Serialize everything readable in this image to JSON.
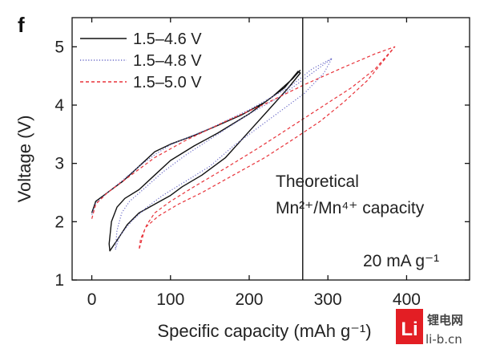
{
  "panel_label": "f",
  "chart_data": {
    "type": "line",
    "xlabel": "Specific capacity (mAh g⁻¹)",
    "ylabel": "Voltage (V)",
    "xlim": [
      -25,
      480
    ],
    "ylim": [
      1,
      5.5
    ],
    "xticks": [
      0,
      100,
      200,
      300,
      400
    ],
    "yticks": [
      1,
      2,
      3,
      4,
      5
    ],
    "grid": false,
    "legend_position": "top-left",
    "series": [
      {
        "name": "1.5–4.6 V",
        "color": "#111111",
        "style": "solid",
        "points": [
          [
            0,
            2.15
          ],
          [
            5,
            2.35
          ],
          [
            20,
            2.5
          ],
          [
            40,
            2.7
          ],
          [
            60,
            2.95
          ],
          [
            80,
            3.2
          ],
          [
            100,
            3.33
          ],
          [
            130,
            3.48
          ],
          [
            160,
            3.65
          ],
          [
            190,
            3.83
          ],
          [
            220,
            4.05
          ],
          [
            245,
            4.3
          ],
          [
            262,
            4.58
          ],
          [
            265,
            4.55
          ],
          [
            250,
            4.3
          ],
          [
            230,
            4.0
          ],
          [
            200,
            3.55
          ],
          [
            170,
            3.1
          ],
          [
            140,
            2.8
          ],
          [
            115,
            2.6
          ],
          [
            100,
            2.45
          ],
          [
            80,
            2.3
          ],
          [
            60,
            2.15
          ],
          [
            45,
            1.95
          ],
          [
            33,
            1.7
          ],
          [
            23,
            1.5
          ],
          [
            22,
            1.62
          ],
          [
            25,
            2.0
          ],
          [
            32,
            2.25
          ],
          [
            42,
            2.4
          ],
          [
            60,
            2.55
          ],
          [
            80,
            2.8
          ],
          [
            100,
            3.05
          ],
          [
            130,
            3.3
          ],
          [
            160,
            3.52
          ],
          [
            200,
            3.85
          ],
          [
            230,
            4.15
          ],
          [
            255,
            4.45
          ],
          [
            265,
            4.6
          ]
        ]
      },
      {
        "name": "1.5–4.8 V",
        "color": "#6b6bc8",
        "style": "dotted",
        "points": [
          [
            0,
            2.12
          ],
          [
            5,
            2.32
          ],
          [
            20,
            2.5
          ],
          [
            40,
            2.72
          ],
          [
            60,
            2.95
          ],
          [
            80,
            3.15
          ],
          [
            100,
            3.32
          ],
          [
            150,
            3.6
          ],
          [
            200,
            3.92
          ],
          [
            250,
            4.3
          ],
          [
            280,
            4.62
          ],
          [
            305,
            4.8
          ],
          [
            295,
            4.55
          ],
          [
            270,
            4.2
          ],
          [
            240,
            3.9
          ],
          [
            210,
            3.6
          ],
          [
            180,
            3.3
          ],
          [
            150,
            2.95
          ],
          [
            120,
            2.7
          ],
          [
            90,
            2.45
          ],
          [
            70,
            2.25
          ],
          [
            50,
            2.0
          ],
          [
            35,
            1.75
          ],
          [
            30,
            1.52
          ],
          [
            32,
            1.85
          ],
          [
            38,
            2.15
          ],
          [
            48,
            2.35
          ],
          [
            65,
            2.55
          ],
          [
            90,
            2.85
          ],
          [
            120,
            3.15
          ],
          [
            160,
            3.5
          ],
          [
            200,
            3.85
          ],
          [
            240,
            4.15
          ],
          [
            270,
            4.45
          ],
          [
            290,
            4.65
          ],
          [
            305,
            4.8
          ]
        ]
      },
      {
        "name": "1.5–5.0 V",
        "color": "#e8333a",
        "style": "dashed",
        "points": [
          [
            0,
            2.05
          ],
          [
            5,
            2.3
          ],
          [
            20,
            2.5
          ],
          [
            50,
            2.8
          ],
          [
            80,
            3.1
          ],
          [
            120,
            3.4
          ],
          [
            170,
            3.72
          ],
          [
            220,
            4.02
          ],
          [
            270,
            4.35
          ],
          [
            320,
            4.65
          ],
          [
            360,
            4.88
          ],
          [
            385,
            5.0
          ],
          [
            370,
            4.75
          ],
          [
            350,
            4.42
          ],
          [
            320,
            4.05
          ],
          [
            290,
            3.72
          ],
          [
            260,
            3.45
          ],
          [
            220,
            3.1
          ],
          [
            180,
            2.8
          ],
          [
            140,
            2.5
          ],
          [
            110,
            2.3
          ],
          [
            85,
            2.1
          ],
          [
            68,
            1.9
          ],
          [
            60,
            1.52
          ],
          [
            62,
            1.7
          ],
          [
            70,
            1.95
          ],
          [
            80,
            2.15
          ],
          [
            100,
            2.35
          ],
          [
            130,
            2.6
          ],
          [
            170,
            2.92
          ],
          [
            210,
            3.25
          ],
          [
            250,
            3.6
          ],
          [
            290,
            3.95
          ],
          [
            330,
            4.3
          ],
          [
            360,
            4.62
          ],
          [
            375,
            4.85
          ],
          [
            385,
            5.0
          ]
        ]
      }
    ],
    "vline": {
      "x": 268,
      "color": "#111111"
    },
    "annotations": {
      "theoretical_line1": "Theoretical",
      "theoretical_line2": "Mn²⁺/Mn⁴⁺ capacity",
      "current": "20 mA g⁻¹"
    }
  },
  "watermark": {
    "logo_char": "Li",
    "brand_cn": "锂电网",
    "domain": "li-b.cn"
  }
}
